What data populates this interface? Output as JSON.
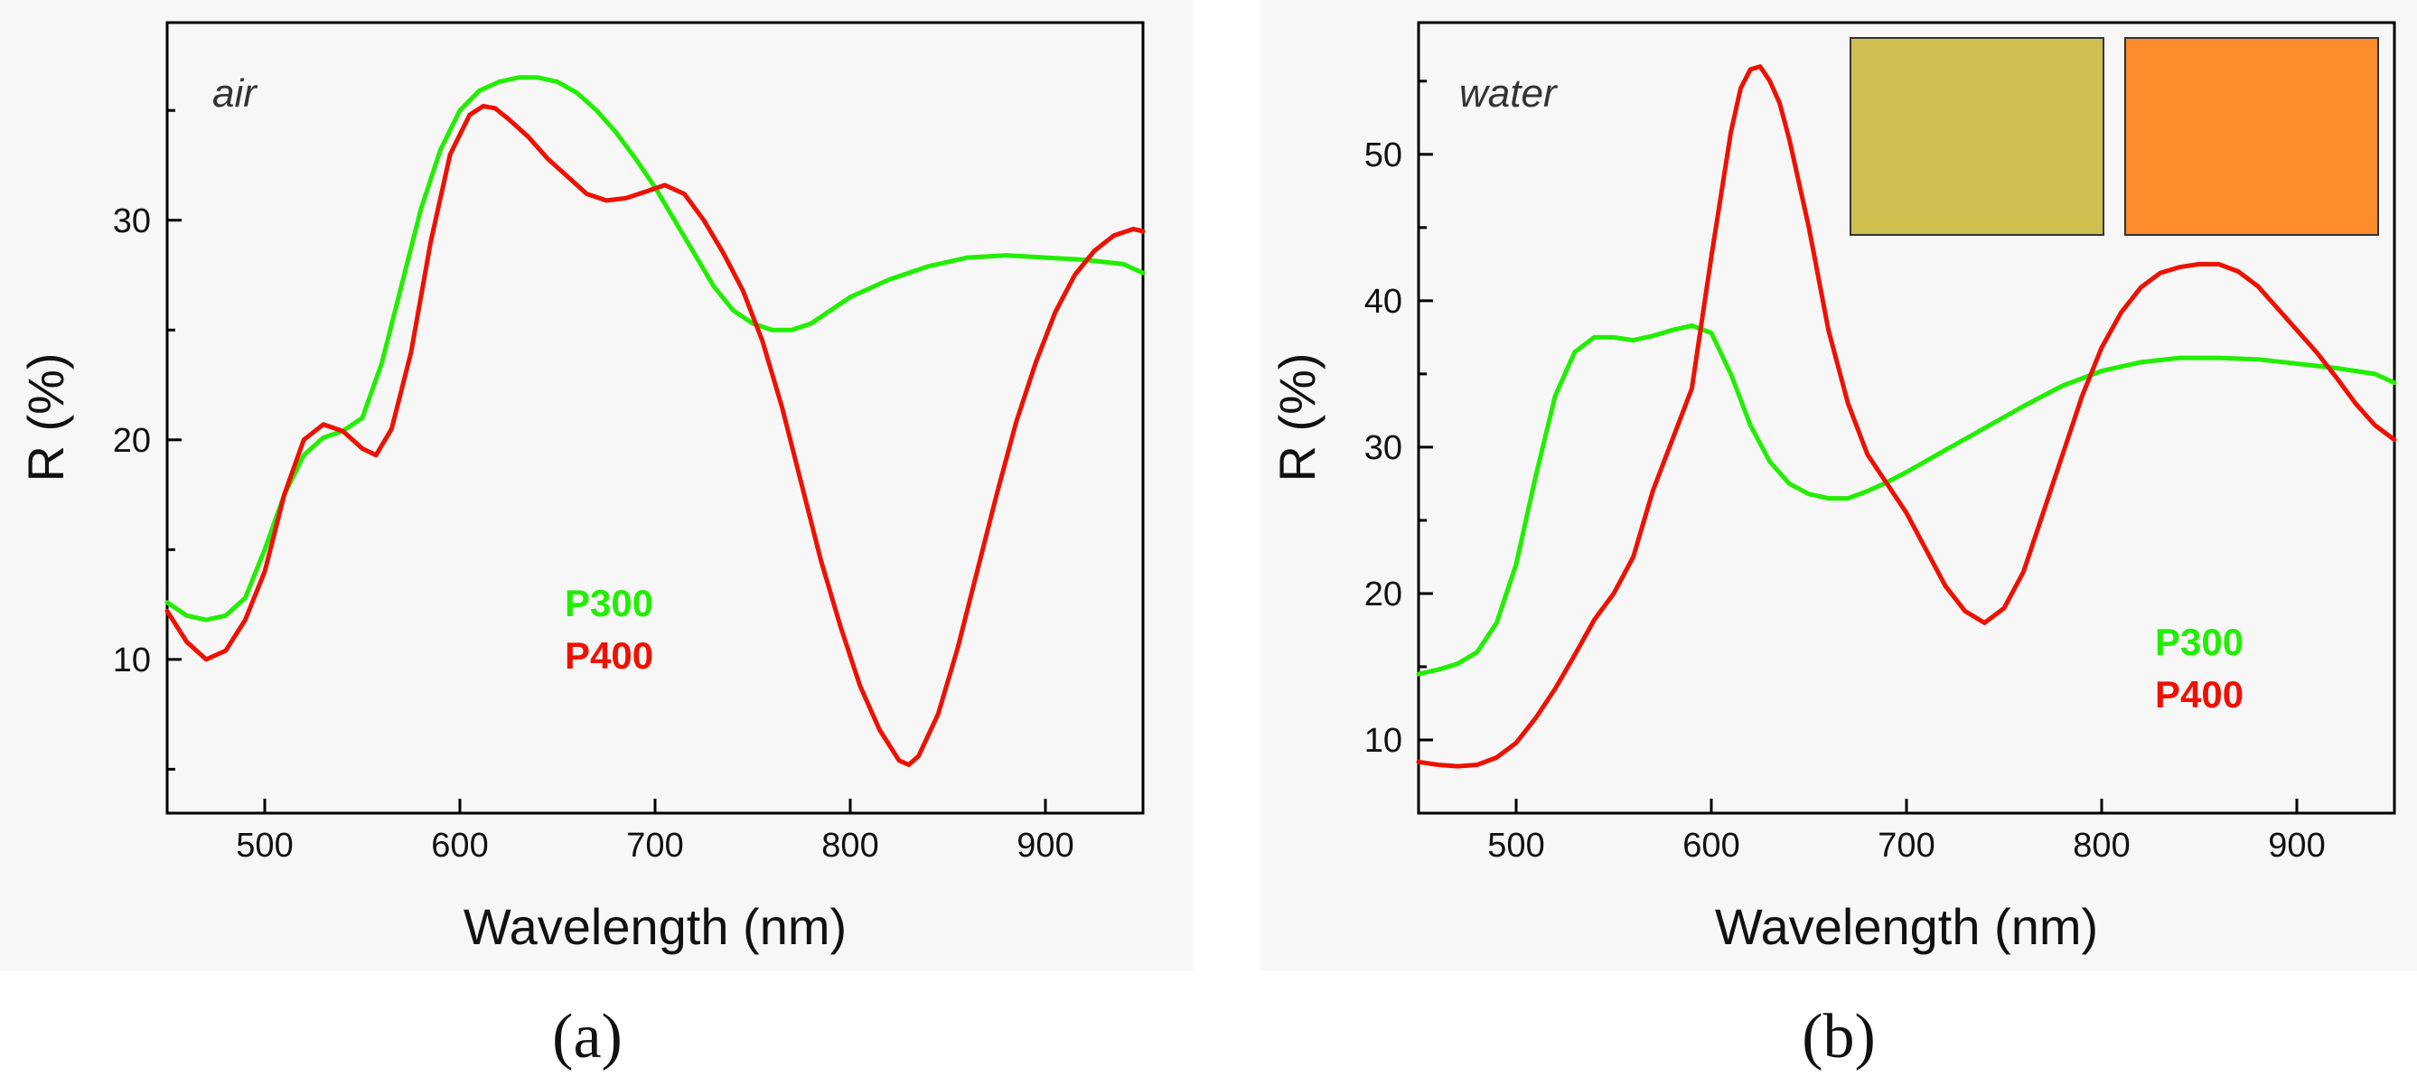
{
  "chart_data": [
    {
      "id": "a",
      "type": "line",
      "panel_label": "(a)",
      "medium": "air",
      "xlabel": "Wavelength (nm)",
      "ylabel": "R (%)",
      "xlim": [
        450,
        950
      ],
      "ylim": [
        3,
        39
      ],
      "xticks": [
        500,
        600,
        700,
        800,
        900
      ],
      "yticks": [
        10,
        20,
        30
      ],
      "legend_position": "center",
      "series": [
        {
          "name": "P300",
          "color": "#22ee00",
          "x": [
            450,
            460,
            470,
            480,
            490,
            500,
            510,
            520,
            530,
            540,
            550,
            560,
            570,
            580,
            590,
            600,
            610,
            620,
            630,
            640,
            650,
            660,
            670,
            680,
            690,
            700,
            710,
            720,
            730,
            740,
            750,
            760,
            770,
            780,
            790,
            800,
            820,
            840,
            860,
            880,
            900,
            920,
            940,
            950
          ],
          "y": [
            12.6,
            12.0,
            11.8,
            12.0,
            12.8,
            15.0,
            17.5,
            19.3,
            20.1,
            20.4,
            21.0,
            23.5,
            27.0,
            30.5,
            33.2,
            35.0,
            35.9,
            36.3,
            36.5,
            36.5,
            36.3,
            35.8,
            35.0,
            34.0,
            32.8,
            31.5,
            30.0,
            28.5,
            27.0,
            25.9,
            25.3,
            25.0,
            25.0,
            25.3,
            25.9,
            26.5,
            27.3,
            27.9,
            28.3,
            28.4,
            28.3,
            28.2,
            28.0,
            27.6
          ]
        },
        {
          "name": "P400",
          "color": "#ee1100",
          "x": [
            450,
            460,
            470,
            480,
            490,
            500,
            510,
            520,
            530,
            540,
            550,
            557,
            565,
            575,
            585,
            595,
            605,
            612,
            618,
            625,
            635,
            645,
            655,
            665,
            675,
            685,
            695,
            705,
            715,
            725,
            735,
            745,
            755,
            765,
            775,
            785,
            795,
            805,
            815,
            825,
            830,
            835,
            845,
            855,
            865,
            875,
            885,
            895,
            905,
            915,
            925,
            935,
            945,
            950
          ],
          "y": [
            12.2,
            10.8,
            10.0,
            10.4,
            11.8,
            14.0,
            17.5,
            20.0,
            20.7,
            20.4,
            19.6,
            19.3,
            20.5,
            24.0,
            29.0,
            33.0,
            34.8,
            35.2,
            35.1,
            34.6,
            33.8,
            32.8,
            32.0,
            31.2,
            30.9,
            31.0,
            31.3,
            31.6,
            31.2,
            30.0,
            28.5,
            26.8,
            24.5,
            21.5,
            18.0,
            14.5,
            11.5,
            8.8,
            6.8,
            5.4,
            5.2,
            5.6,
            7.5,
            10.5,
            14.0,
            17.5,
            20.8,
            23.5,
            25.8,
            27.5,
            28.6,
            29.3,
            29.6,
            29.5
          ]
        }
      ]
    },
    {
      "id": "b",
      "type": "line",
      "panel_label": "(b)",
      "medium": "water",
      "xlabel": "Wavelength (nm)",
      "ylabel": "R (%)",
      "xlim": [
        450,
        950
      ],
      "ylim": [
        5,
        59
      ],
      "xticks": [
        500,
        600,
        700,
        800,
        900
      ],
      "yticks": [
        10,
        20,
        30,
        40,
        50
      ],
      "legend_position": "bottom-right",
      "inset_swatches": [
        "#cfbf50",
        "#fc8c2c"
      ],
      "series": [
        {
          "name": "P300",
          "color": "#22ee00",
          "x": [
            450,
            460,
            470,
            480,
            490,
            500,
            510,
            520,
            530,
            540,
            550,
            560,
            570,
            580,
            590,
            600,
            610,
            620,
            630,
            640,
            650,
            660,
            670,
            680,
            690,
            700,
            720,
            740,
            760,
            780,
            800,
            820,
            840,
            860,
            880,
            900,
            920,
            940,
            950
          ],
          "y": [
            14.5,
            14.8,
            15.2,
            16.0,
            18.0,
            22.0,
            28.0,
            33.5,
            36.5,
            37.5,
            37.5,
            37.3,
            37.6,
            38.0,
            38.3,
            37.8,
            35.0,
            31.5,
            29.0,
            27.5,
            26.8,
            26.5,
            26.5,
            27.0,
            27.6,
            28.3,
            29.8,
            31.3,
            32.8,
            34.2,
            35.2,
            35.8,
            36.1,
            36.1,
            36.0,
            35.7,
            35.4,
            35.0,
            34.4
          ]
        },
        {
          "name": "P400",
          "color": "#ee1100",
          "x": [
            450,
            460,
            470,
            480,
            490,
            500,
            510,
            520,
            530,
            540,
            550,
            560,
            570,
            580,
            590,
            600,
            610,
            615,
            620,
            625,
            630,
            635,
            640,
            650,
            660,
            670,
            680,
            690,
            700,
            710,
            720,
            730,
            740,
            750,
            760,
            770,
            780,
            790,
            800,
            810,
            820,
            830,
            840,
            850,
            860,
            870,
            880,
            890,
            900,
            910,
            920,
            930,
            940,
            950
          ],
          "y": [
            8.5,
            8.3,
            8.2,
            8.3,
            8.8,
            9.8,
            11.5,
            13.5,
            15.8,
            18.2,
            20.0,
            22.5,
            27.0,
            30.5,
            34.0,
            43.0,
            51.5,
            54.5,
            55.8,
            56.0,
            55.0,
            53.5,
            51.0,
            45.0,
            38.0,
            33.0,
            29.5,
            27.5,
            25.5,
            23.0,
            20.5,
            18.8,
            18.0,
            19.0,
            21.5,
            25.5,
            29.5,
            33.5,
            36.8,
            39.2,
            40.9,
            41.9,
            42.3,
            42.5,
            42.5,
            42.0,
            41.0,
            39.5,
            38.0,
            36.5,
            34.8,
            33.0,
            31.5,
            30.5
          ]
        }
      ]
    }
  ]
}
